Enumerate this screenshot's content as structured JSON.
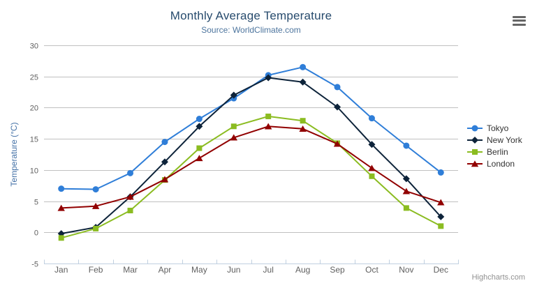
{
  "page": {
    "credits": "Highcharts.com",
    "export_menu_icon": "hamburger-menu-icon"
  },
  "chart_data": {
    "type": "line",
    "title": "Monthly Average Temperature",
    "subtitle": "Source: WorldClimate.com",
    "categories": [
      "Jan",
      "Feb",
      "Mar",
      "Apr",
      "May",
      "Jun",
      "Jul",
      "Aug",
      "Sep",
      "Oct",
      "Nov",
      "Dec"
    ],
    "xlabel": "",
    "ylabel": "Temperature (°C)",
    "ylim": [
      -5,
      30
    ],
    "yticks": [
      -5,
      0,
      5,
      10,
      15,
      20,
      25,
      30
    ],
    "grid": true,
    "legend_position": "right",
    "series": [
      {
        "name": "Tokyo",
        "color": "#2f7ed8",
        "marker": "circle",
        "values": [
          7.0,
          6.9,
          9.5,
          14.5,
          18.2,
          21.5,
          25.2,
          26.5,
          23.3,
          18.3,
          13.9,
          9.6
        ]
      },
      {
        "name": "New York",
        "color": "#0d233a",
        "marker": "diamond",
        "values": [
          -0.2,
          0.8,
          5.7,
          11.3,
          17.0,
          22.0,
          24.8,
          24.1,
          20.1,
          14.1,
          8.6,
          2.5
        ]
      },
      {
        "name": "Berlin",
        "color": "#8bbc21",
        "marker": "square",
        "values": [
          -0.9,
          0.6,
          3.5,
          8.4,
          13.5,
          17.0,
          18.6,
          17.9,
          14.3,
          9.0,
          3.9,
          1.0
        ]
      },
      {
        "name": "London",
        "color": "#910000",
        "marker": "triangle",
        "values": [
          3.9,
          4.2,
          5.7,
          8.5,
          11.9,
          15.2,
          17.0,
          16.6,
          14.2,
          10.3,
          6.6,
          4.8
        ]
      }
    ],
    "colors": {
      "title": "#274b6d",
      "subtitle": "#4d759e",
      "grid": "#c0c0c0",
      "axis_line": "#c0d0e0",
      "axis_labels": "#606060",
      "y_axis_title": "#4572a7",
      "legend_text": "#333333",
      "credits": "#909090",
      "export_icon": "#666666",
      "background": "#ffffff"
    }
  }
}
